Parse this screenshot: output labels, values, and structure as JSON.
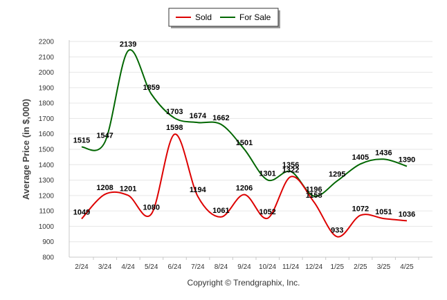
{
  "chart_data": {
    "type": "line",
    "categories": [
      "2/24",
      "3/24",
      "4/24",
      "5/24",
      "6/24",
      "7/24",
      "8/24",
      "9/24",
      "10/24",
      "11/24",
      "12/24",
      "1/25",
      "2/25",
      "3/25",
      "4/25"
    ],
    "series": [
      {
        "name": "Sold",
        "color": "#dd0000",
        "values": [
          1049,
          1208,
          1201,
          1080,
          1598,
          1194,
          1061,
          1206,
          1052,
          1322,
          1158,
          933,
          1072,
          1051,
          1036
        ]
      },
      {
        "name": "For Sale",
        "color": "#006600",
        "values": [
          1515,
          1547,
          2139,
          1859,
          1703,
          1674,
          1662,
          1501,
          1301,
          1356,
          1196,
          1295,
          1405,
          1436,
          1390
        ]
      }
    ],
    "ylabel": "Average Price (in $,000)",
    "ylim": [
      800,
      2200
    ],
    "yticks": [
      800,
      900,
      1000,
      1100,
      1200,
      1300,
      1400,
      1500,
      1600,
      1700,
      1800,
      1900,
      2000,
      2100,
      2200
    ],
    "grid": true,
    "legend": "top-center"
  },
  "footer": {
    "copyright": "Copyright © Trendgraphix, Inc."
  }
}
